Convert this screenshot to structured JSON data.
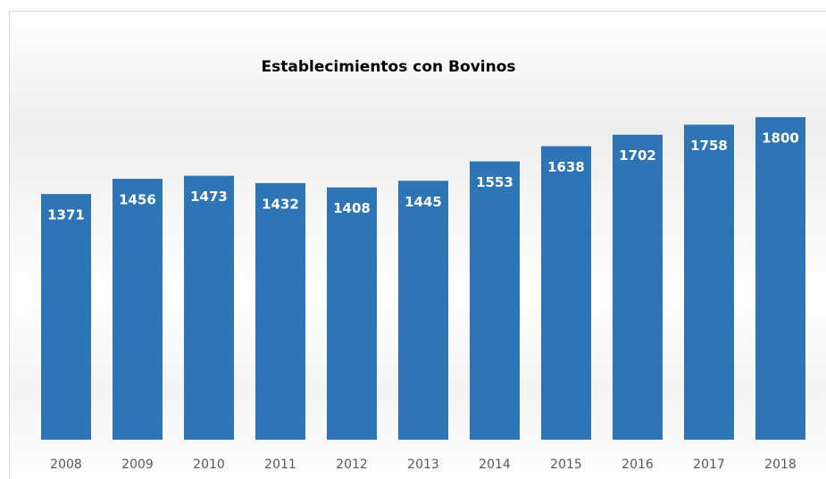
{
  "chart_data": {
    "type": "bar",
    "title": "Establecimientos con Bovinos",
    "categories": [
      "2008",
      "2009",
      "2010",
      "2011",
      "2012",
      "2013",
      "2014",
      "2015",
      "2016",
      "2017",
      "2018"
    ],
    "values": [
      1371,
      1456,
      1473,
      1432,
      1408,
      1445,
      1553,
      1638,
      1702,
      1758,
      1800
    ],
    "color": "#2e75b6",
    "ylim": [
      0,
      2000
    ]
  }
}
